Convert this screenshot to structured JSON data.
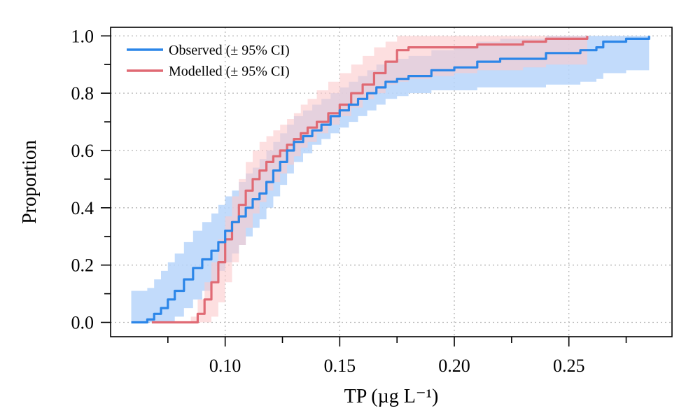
{
  "chart_data": {
    "type": "line",
    "xlabel": "TP (µg L⁻¹)",
    "ylabel": "Proportion",
    "xlim": [
      0.05,
      0.295
    ],
    "ylim": [
      -0.05,
      1.03
    ],
    "x_ticks": [
      0.1,
      0.15,
      0.2,
      0.25
    ],
    "x_tick_labels": [
      "0.10",
      "0.15",
      "0.20",
      "0.25"
    ],
    "x_minor_ticks": [
      0.075,
      0.125,
      0.175,
      0.225,
      0.275
    ],
    "y_ticks": [
      0.0,
      0.2,
      0.4,
      0.6,
      0.8,
      1.0
    ],
    "y_tick_labels": [
      "0.0",
      "0.2",
      "0.4",
      "0.6",
      "0.8",
      "1.0"
    ],
    "y_minor_ticks": [
      0.1,
      0.3,
      0.5,
      0.7,
      0.9
    ],
    "grid": true,
    "legend_position": "top-left",
    "series": [
      {
        "name": "Observed (± 95% CI)",
        "color": "#2c86e8",
        "band_color": "#b7d5fa",
        "x": [
          0.059,
          0.066,
          0.069,
          0.072,
          0.075,
          0.078,
          0.082,
          0.086,
          0.09,
          0.094,
          0.097,
          0.1,
          0.103,
          0.106,
          0.109,
          0.112,
          0.115,
          0.118,
          0.121,
          0.124,
          0.127,
          0.13,
          0.134,
          0.138,
          0.142,
          0.146,
          0.15,
          0.154,
          0.158,
          0.162,
          0.166,
          0.17,
          0.175,
          0.18,
          0.19,
          0.2,
          0.21,
          0.22,
          0.24,
          0.255,
          0.262,
          0.265,
          0.275,
          0.285
        ],
        "y": [
          0.0,
          0.01,
          0.03,
          0.05,
          0.08,
          0.11,
          0.15,
          0.19,
          0.22,
          0.25,
          0.28,
          0.32,
          0.35,
          0.37,
          0.4,
          0.43,
          0.45,
          0.49,
          0.53,
          0.56,
          0.6,
          0.63,
          0.65,
          0.67,
          0.69,
          0.72,
          0.74,
          0.76,
          0.78,
          0.8,
          0.82,
          0.84,
          0.85,
          0.86,
          0.88,
          0.89,
          0.91,
          0.92,
          0.94,
          0.95,
          0.96,
          0.98,
          0.99,
          1.0
        ],
        "lower": [
          0.0,
          0.0,
          0.0,
          0.0,
          0.0,
          0.02,
          0.05,
          0.08,
          0.11,
          0.14,
          0.18,
          0.21,
          0.24,
          0.27,
          0.3,
          0.33,
          0.36,
          0.4,
          0.44,
          0.48,
          0.52,
          0.56,
          0.59,
          0.62,
          0.64,
          0.66,
          0.68,
          0.7,
          0.72,
          0.74,
          0.76,
          0.78,
          0.79,
          0.8,
          0.81,
          0.81,
          0.82,
          0.82,
          0.83,
          0.84,
          0.85,
          0.87,
          0.88,
          0.9
        ],
        "upper": [
          0.11,
          0.12,
          0.15,
          0.18,
          0.21,
          0.24,
          0.28,
          0.32,
          0.35,
          0.38,
          0.41,
          0.44,
          0.46,
          0.49,
          0.52,
          0.54,
          0.57,
          0.6,
          0.63,
          0.66,
          0.69,
          0.72,
          0.74,
          0.76,
          0.78,
          0.8,
          0.82,
          0.84,
          0.86,
          0.88,
          0.9,
          0.91,
          0.92,
          0.93,
          0.95,
          0.96,
          0.98,
          0.99,
          1.0,
          1.0,
          1.0,
          1.0,
          1.0,
          1.0
        ]
      },
      {
        "name": "Modelled (± 95% CI)",
        "color": "#e06a74",
        "band_color": "#fcc9cb",
        "x": [
          0.068,
          0.085,
          0.088,
          0.091,
          0.094,
          0.097,
          0.1,
          0.103,
          0.106,
          0.109,
          0.112,
          0.115,
          0.118,
          0.121,
          0.124,
          0.127,
          0.13,
          0.133,
          0.136,
          0.14,
          0.145,
          0.15,
          0.155,
          0.16,
          0.165,
          0.17,
          0.175,
          0.18,
          0.19,
          0.2,
          0.21,
          0.22,
          0.23,
          0.24,
          0.25,
          0.258
        ],
        "y": [
          0.0,
          0.0,
          0.03,
          0.08,
          0.14,
          0.21,
          0.29,
          0.35,
          0.41,
          0.46,
          0.5,
          0.53,
          0.56,
          0.58,
          0.6,
          0.62,
          0.64,
          0.66,
          0.68,
          0.7,
          0.73,
          0.76,
          0.8,
          0.83,
          0.87,
          0.91,
          0.95,
          0.96,
          0.96,
          0.96,
          0.97,
          0.97,
          0.98,
          0.99,
          0.99,
          1.0
        ],
        "lower": [
          0.0,
          0.0,
          0.0,
          0.0,
          0.02,
          0.07,
          0.14,
          0.21,
          0.27,
          0.33,
          0.38,
          0.42,
          0.46,
          0.49,
          0.52,
          0.55,
          0.58,
          0.61,
          0.63,
          0.66,
          0.69,
          0.72,
          0.75,
          0.78,
          0.8,
          0.83,
          0.84,
          0.85,
          0.86,
          0.87,
          0.88,
          0.88,
          0.89,
          0.9,
          0.9,
          0.9
        ],
        "upper": [
          0.0,
          0.02,
          0.08,
          0.14,
          0.21,
          0.29,
          0.37,
          0.44,
          0.5,
          0.56,
          0.6,
          0.63,
          0.65,
          0.67,
          0.69,
          0.71,
          0.73,
          0.76,
          0.78,
          0.81,
          0.84,
          0.87,
          0.9,
          0.93,
          0.96,
          0.98,
          1.0,
          1.0,
          1.0,
          1.0,
          1.0,
          1.0,
          1.0,
          1.0,
          1.0,
          1.0
        ]
      }
    ]
  }
}
